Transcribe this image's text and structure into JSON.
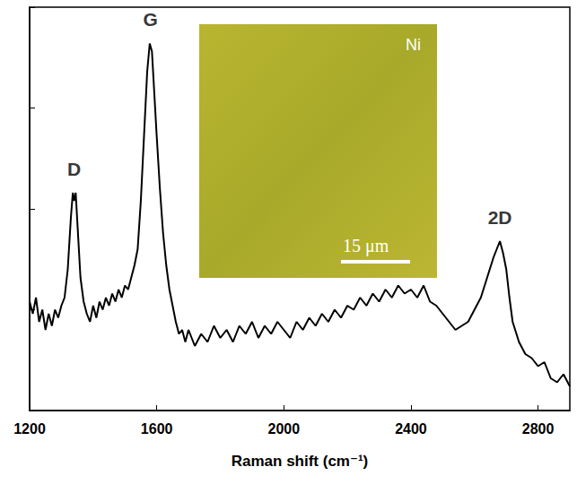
{
  "chart_data": {
    "type": "line",
    "x_label": "Raman shift (cm⁻¹)",
    "xlim": [
      1200,
      2900
    ],
    "xticks": [
      1200,
      1600,
      2000,
      2400,
      2800
    ],
    "ylim": [
      0,
      100
    ],
    "yticks": [
      0,
      25,
      50,
      75,
      100
    ],
    "tick_labels": "x",
    "grid": false,
    "color": "#000000",
    "x": [
      1200,
      1210,
      1220,
      1230,
      1240,
      1250,
      1260,
      1270,
      1280,
      1290,
      1300,
      1310,
      1320,
      1330,
      1336,
      1340,
      1345,
      1350,
      1360,
      1370,
      1380,
      1390,
      1400,
      1410,
      1420,
      1430,
      1440,
      1450,
      1460,
      1470,
      1480,
      1490,
      1500,
      1510,
      1520,
      1530,
      1540,
      1550,
      1560,
      1570,
      1578,
      1585,
      1590,
      1600,
      1610,
      1620,
      1630,
      1640,
      1650,
      1660,
      1670,
      1680,
      1690,
      1700,
      1720,
      1740,
      1760,
      1780,
      1800,
      1820,
      1840,
      1860,
      1880,
      1900,
      1920,
      1940,
      1960,
      1980,
      2000,
      2020,
      2040,
      2060,
      2080,
      2100,
      2120,
      2140,
      2160,
      2180,
      2200,
      2220,
      2240,
      2260,
      2280,
      2300,
      2320,
      2340,
      2360,
      2380,
      2400,
      2420,
      2440,
      2460,
      2480,
      2500,
      2520,
      2540,
      2560,
      2580,
      2600,
      2620,
      2640,
      2660,
      2670,
      2680,
      2690,
      2700,
      2710,
      2720,
      2740,
      2760,
      2780,
      2800,
      2820,
      2840,
      2860,
      2880,
      2900
    ],
    "values": [
      27,
      24,
      28,
      22,
      25,
      20,
      24,
      21,
      25,
      23,
      26,
      28,
      35,
      48,
      54,
      52,
      54,
      47,
      33,
      27,
      24,
      22,
      26,
      23,
      27,
      25,
      28,
      26,
      29,
      27,
      30,
      28,
      31,
      30,
      33,
      36,
      40,
      52,
      68,
      84,
      91,
      89,
      82,
      68,
      55,
      44,
      36,
      30,
      26,
      22,
      19,
      20,
      17,
      20,
      16,
      19,
      17,
      21,
      18,
      20,
      17,
      21,
      19,
      22,
      18,
      21,
      19,
      22,
      20,
      18,
      22,
      20,
      23,
      21,
      24,
      22,
      25,
      23,
      26,
      25,
      28,
      26,
      29,
      27,
      30,
      28,
      31,
      29,
      30,
      28,
      31,
      27,
      26,
      24,
      22,
      20,
      21,
      22,
      25,
      28,
      33,
      38,
      40,
      42,
      39,
      35,
      28,
      22,
      17,
      14,
      13,
      11,
      12,
      8,
      7,
      9,
      6
    ],
    "annotations": [
      {
        "text": "D",
        "x": 1340,
        "y": 60
      },
      {
        "text": "G",
        "x": 1580,
        "y": 97
      },
      {
        "text": "2D",
        "x": 2680,
        "y": 48
      }
    ],
    "inset": {
      "label": "Ni",
      "scale_bar": "15 μm"
    }
  }
}
